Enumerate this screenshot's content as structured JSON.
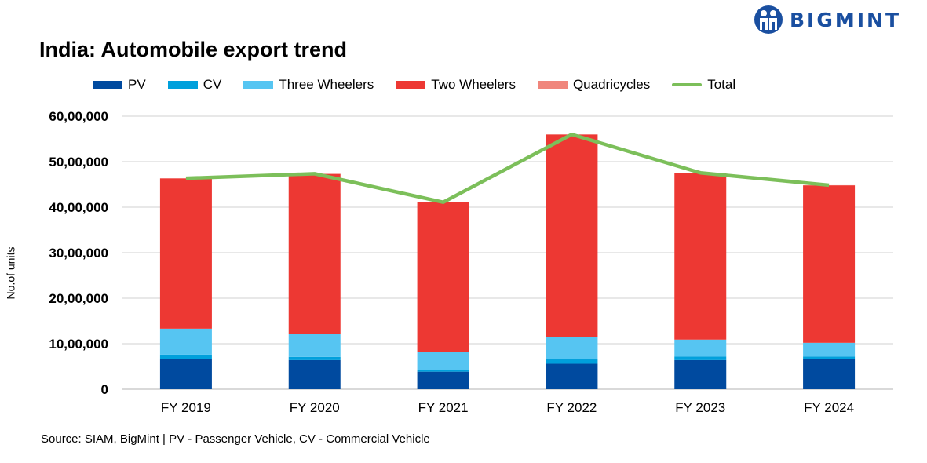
{
  "title": "India: Automobile export trend",
  "source": "Source: SIAM, BigMint | PV - Passenger Vehicle, CV - Commercial Vehicle",
  "logo": {
    "text": "BIGMINT",
    "color": "#1a4fa0"
  },
  "chart_data": {
    "type": "bar",
    "stacked": true,
    "title": "India: Automobile export trend",
    "ylabel": "No.of units",
    "xlabel": "",
    "ylim": [
      0,
      6000000
    ],
    "yticks": [
      0,
      1000000,
      2000000,
      3000000,
      4000000,
      5000000,
      6000000
    ],
    "ytick_labels": [
      "0",
      "10,00,000",
      "20,00,000",
      "30,00,000",
      "40,00,000",
      "50,00,000",
      "60,00,000"
    ],
    "grid": true,
    "legend_placement": "top",
    "categories": [
      "FY 2019",
      "FY 2020",
      "FY 2021",
      "FY 2022",
      "FY 2023",
      "FY 2024"
    ],
    "series": [
      {
        "name": "PV",
        "color": "#004a9f",
        "values": [
          660000,
          640000,
          385000,
          560000,
          640000,
          660000
        ]
      },
      {
        "name": "CV",
        "color": "#00a0dc",
        "values": [
          100000,
          70000,
          45000,
          95000,
          80000,
          60000
        ]
      },
      {
        "name": "Three Wheelers",
        "color": "#56c5f2",
        "values": [
          570000,
          500000,
          395000,
          500000,
          370000,
          300000
        ]
      },
      {
        "name": "Two Wheelers",
        "color": "#ed3833",
        "values": [
          3300000,
          3520000,
          3280000,
          4440000,
          3660000,
          3460000
        ]
      },
      {
        "name": "Quadricycles",
        "color": "#f0867c",
        "values": [
          5000,
          5000,
          3000,
          4000,
          5000,
          4000
        ]
      }
    ],
    "line": {
      "name": "Total",
      "color": "#7cbf5a",
      "values": [
        4635000,
        4735000,
        4108000,
        5599000,
        4755000,
        4484000
      ]
    }
  }
}
